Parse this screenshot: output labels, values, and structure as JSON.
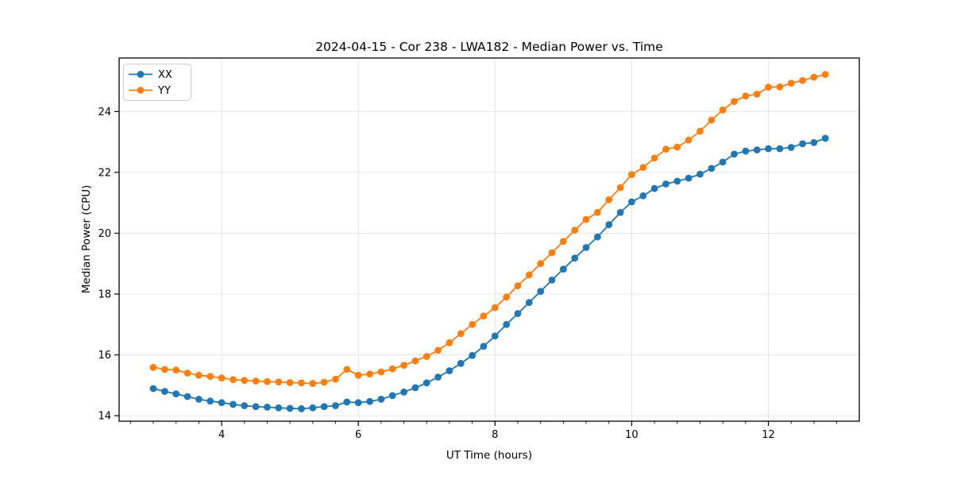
{
  "title": "2024-04-15 - Cor 238 - LWA182 - Median Power vs. Time",
  "colors": {
    "series_xx": "#1f77b4",
    "series_yy": "#ff7f0e",
    "grid": "#e4e4e4",
    "spine": "#000000",
    "legend_border": "#cccccc",
    "background": "#ffffff"
  },
  "chart_data": {
    "type": "line",
    "title": "2024-04-15 - Cor 238 - LWA182 - Median Power vs. Time",
    "xlabel": "UT Time (hours)",
    "ylabel": "Median Power (CPU)",
    "xlim": [
      2.5,
      13.33
    ],
    "ylim": [
      13.82,
      25.76
    ],
    "x_major_ticks": [
      4,
      6,
      8,
      10,
      12
    ],
    "x_minor_tick_step": 0.3333,
    "y_major_ticks": [
      14,
      16,
      18,
      20,
      22,
      24
    ],
    "grid": "major-only, light gray",
    "legend_position": "upper left",
    "marker": "circle",
    "x": [
      3.0,
      3.167,
      3.333,
      3.5,
      3.667,
      3.833,
      4.0,
      4.167,
      4.333,
      4.5,
      4.667,
      4.833,
      5.0,
      5.167,
      5.333,
      5.5,
      5.667,
      5.833,
      6.0,
      6.167,
      6.333,
      6.5,
      6.667,
      6.833,
      7.0,
      7.167,
      7.333,
      7.5,
      7.667,
      7.833,
      8.0,
      8.167,
      8.333,
      8.5,
      8.667,
      8.833,
      9.0,
      9.167,
      9.333,
      9.5,
      9.667,
      9.833,
      10.0,
      10.167,
      10.333,
      10.5,
      10.667,
      10.833,
      11.0,
      11.167,
      11.333,
      11.5,
      11.667,
      11.833,
      12.0,
      12.167,
      12.333,
      12.5,
      12.667,
      12.833
    ],
    "series": [
      {
        "name": "XX",
        "color": "#1f77b4",
        "values": [
          14.89,
          14.8,
          14.72,
          14.63,
          14.54,
          14.48,
          14.43,
          14.37,
          14.33,
          14.3,
          14.28,
          14.26,
          14.24,
          14.23,
          14.26,
          14.3,
          14.33,
          14.45,
          14.43,
          14.47,
          14.54,
          14.66,
          14.78,
          14.92,
          15.08,
          15.27,
          15.48,
          15.72,
          15.98,
          16.28,
          16.62,
          17.0,
          17.36,
          17.72,
          18.09,
          18.46,
          18.82,
          19.18,
          19.53,
          19.88,
          20.28,
          20.68,
          21.03,
          21.23,
          21.47,
          21.62,
          21.71,
          21.81,
          21.94,
          22.13,
          22.34,
          22.6,
          22.7,
          22.74,
          22.78,
          22.78,
          22.82,
          22.94,
          22.98,
          23.12
        ]
      },
      {
        "name": "YY",
        "color": "#ff7f0e",
        "values": [
          15.59,
          15.52,
          15.5,
          15.4,
          15.33,
          15.29,
          15.24,
          15.19,
          15.16,
          15.14,
          15.12,
          15.11,
          15.09,
          15.08,
          15.06,
          15.1,
          15.2,
          15.52,
          15.33,
          15.37,
          15.44,
          15.54,
          15.66,
          15.8,
          15.95,
          16.15,
          16.4,
          16.7,
          17.0,
          17.28,
          17.55,
          17.9,
          18.27,
          18.63,
          19.0,
          19.36,
          19.73,
          20.1,
          20.45,
          20.68,
          21.1,
          21.5,
          21.93,
          22.16,
          22.47,
          22.76,
          22.83,
          23.06,
          23.35,
          23.72,
          24.05,
          24.33,
          24.51,
          24.57,
          24.8,
          24.81,
          24.93,
          25.02,
          25.13,
          25.22
        ]
      }
    ]
  }
}
